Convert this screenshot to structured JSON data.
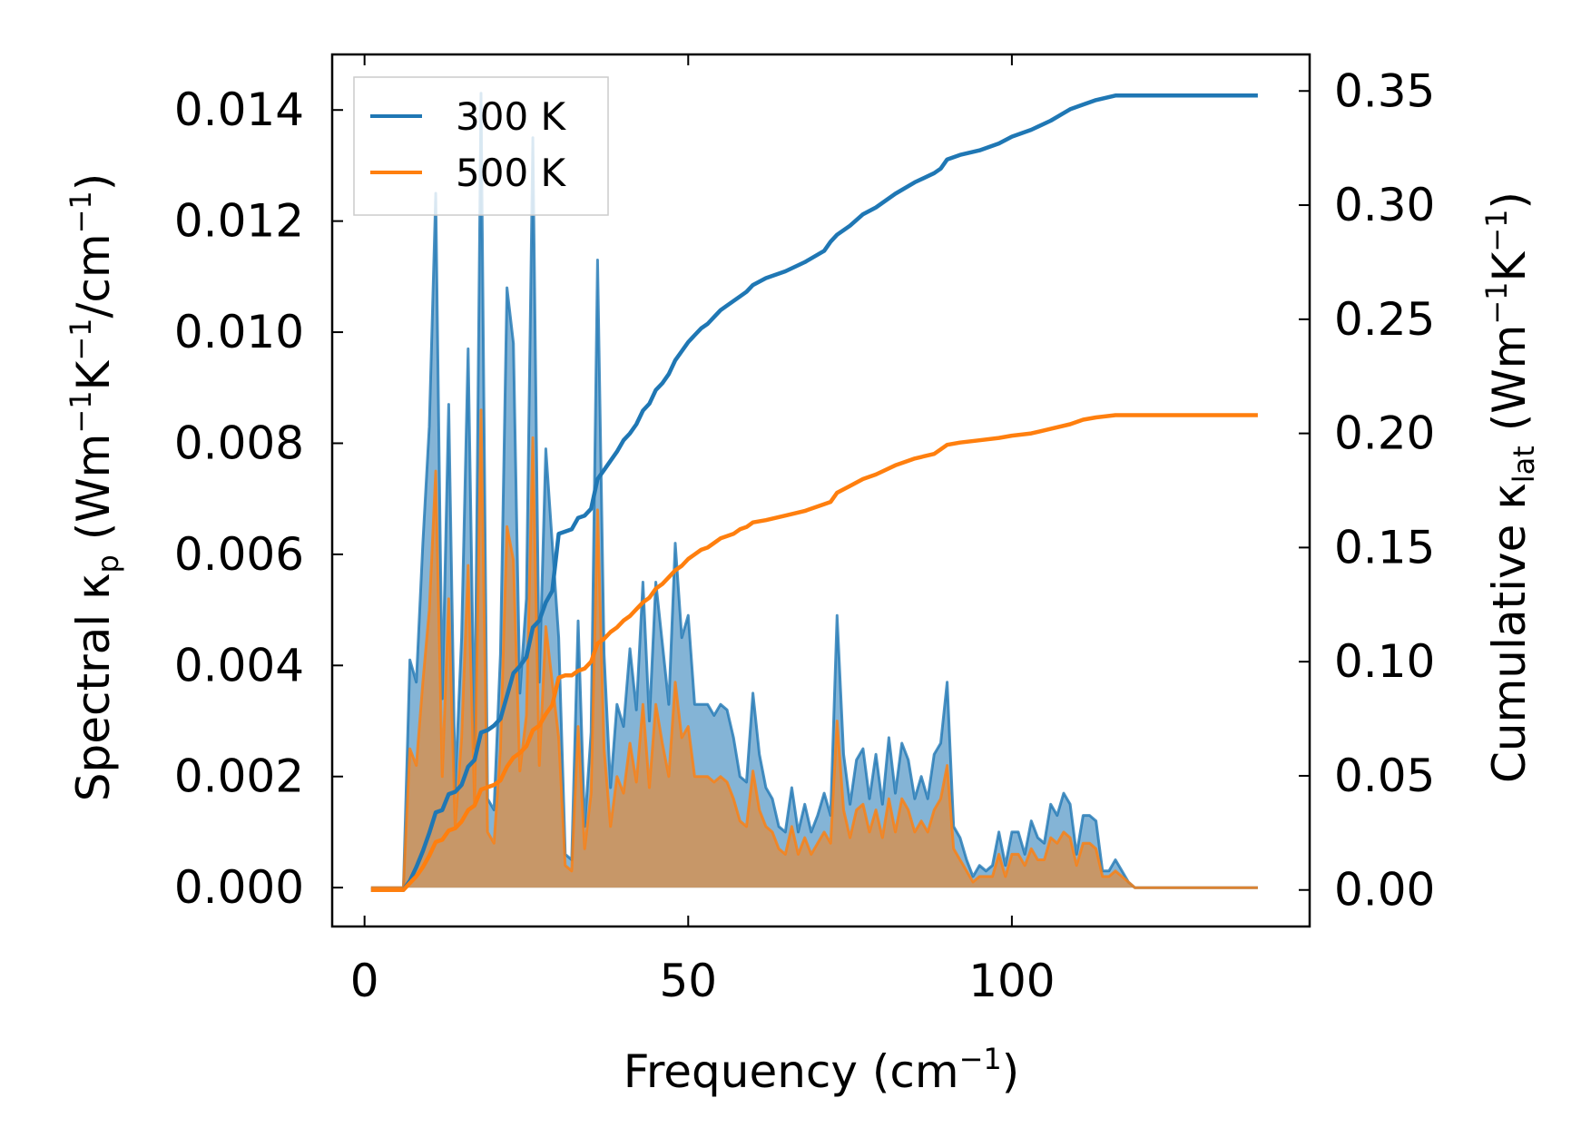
{
  "chart_data": {
    "type": "area",
    "xlabel": {
      "text": "Frequency (cm",
      "sup": "−1",
      "tail": ")"
    },
    "ylabel_left": {
      "base": "Spectral κ",
      "sub": "p",
      "rest": " (Wm",
      "sup1": "−1",
      "mid": "K",
      "sup2": "−1",
      "mid2": "/cm",
      "sup3": "−1",
      "tail": ")"
    },
    "ylabel_right": {
      "base": "Cumulative κ",
      "sub": "lat",
      "rest": " (Wm",
      "sup1": "−1",
      "mid": "K",
      "sup2": "−1",
      "tail": ")"
    },
    "xlim": [
      -5,
      146
    ],
    "ylim_left": [
      -0.0007,
      0.015
    ],
    "ylim_right": [
      -0.016,
      0.366
    ],
    "xticks": [
      0,
      50,
      100
    ],
    "xtick_labels": [
      "0",
      "50",
      "100"
    ],
    "yticks_left": [
      0,
      0.002,
      0.004,
      0.006,
      0.008,
      0.01,
      0.012,
      0.014
    ],
    "ytick_labels_left": [
      "0.000",
      "0.002",
      "0.004",
      "0.006",
      "0.008",
      "0.010",
      "0.012",
      "0.014"
    ],
    "yticks_right": [
      0,
      0.05,
      0.1,
      0.15,
      0.2,
      0.25,
      0.3,
      0.35
    ],
    "ytick_labels_right": [
      "0.00",
      "0.05",
      "0.10",
      "0.15",
      "0.20",
      "0.25",
      "0.30",
      "0.35"
    ],
    "grid": false,
    "legend": {
      "position": "top-left"
    },
    "colors": {
      "s300": "#1f77b4",
      "s500": "#ff7f0e"
    },
    "spectral_x": [
      1,
      6,
      7,
      8,
      9,
      10,
      11,
      12,
      13,
      14,
      15,
      16,
      17,
      18,
      19,
      20,
      21,
      22,
      23,
      24,
      25,
      26,
      27,
      28,
      29,
      30,
      31,
      32,
      33,
      34,
      35,
      36,
      37,
      38,
      39,
      40,
      41,
      42,
      43,
      44,
      45,
      46,
      47,
      48,
      49,
      50,
      51,
      52,
      53,
      54,
      55,
      56,
      57,
      58,
      59,
      60,
      61,
      62,
      63,
      64,
      65,
      66,
      67,
      68,
      69,
      70,
      71,
      72,
      73,
      74,
      75,
      76,
      77,
      78,
      79,
      80,
      81,
      82,
      83,
      84,
      85,
      86,
      87,
      88,
      89,
      90,
      91,
      92,
      93,
      94,
      95,
      96,
      97,
      98,
      99,
      100,
      101,
      102,
      103,
      104,
      105,
      106,
      107,
      108,
      109,
      110,
      111,
      112,
      113,
      114,
      115,
      116,
      117,
      118,
      119,
      120,
      121,
      138
    ],
    "series": [
      {
        "name": "300 K",
        "spectral": [
          0,
          0,
          0.0041,
          0.0037,
          0.0062,
          0.0083,
          0.0125,
          0.0034,
          0.0087,
          0.0018,
          0.0045,
          0.0097,
          0.0025,
          0.0143,
          0.0016,
          0.0014,
          0.0042,
          0.0108,
          0.0098,
          0.0035,
          0.0052,
          0.0135,
          0.0037,
          0.0079,
          0.0062,
          0.0045,
          0.0006,
          0.0005,
          0.0048,
          0.0011,
          0.0028,
          0.0113,
          0.0042,
          0.0018,
          0.0033,
          0.0029,
          0.0043,
          0.0032,
          0.0055,
          0.003,
          0.0055,
          0.0044,
          0.0033,
          0.0062,
          0.0045,
          0.0049,
          0.0033,
          0.0033,
          0.0033,
          0.0031,
          0.0033,
          0.0032,
          0.0027,
          0.002,
          0.0019,
          0.0035,
          0.0024,
          0.0018,
          0.0016,
          0.0011,
          0.001,
          0.0018,
          0.001,
          0.0015,
          0.001,
          0.0013,
          0.0017,
          0.0013,
          0.0049,
          0.0024,
          0.0015,
          0.0023,
          0.0025,
          0.0016,
          0.0024,
          0.0015,
          0.0027,
          0.0017,
          0.0026,
          0.0023,
          0.0016,
          0.002,
          0.0016,
          0.0024,
          0.0026,
          0.0037,
          0.0011,
          0.0009,
          0.0005,
          0.0002,
          0.0004,
          0.0003,
          0.0004,
          0.001,
          0.0004,
          0.001,
          0.001,
          0.0006,
          0.0012,
          0.0009,
          0.0008,
          0.0015,
          0.0013,
          0.0017,
          0.0015,
          0.0006,
          0.0013,
          0.0013,
          0.0012,
          0.0003,
          0.0003,
          0.0005,
          0.0003,
          0.0001,
          0,
          0,
          0,
          0
        ],
        "cumulative_x": [
          1,
          6,
          7,
          8,
          9,
          10,
          11,
          12,
          13,
          14,
          15,
          16,
          17,
          18,
          19,
          20,
          21,
          22,
          23,
          24,
          25,
          26,
          27,
          28,
          29,
          30,
          31,
          32,
          33,
          34,
          35,
          36,
          37,
          38,
          39,
          40,
          41,
          42,
          43,
          44,
          45,
          46,
          47,
          48,
          49,
          50,
          51,
          52,
          53,
          54,
          55,
          56,
          57,
          58,
          59,
          60,
          62,
          65,
          68,
          71,
          72,
          73,
          75,
          77,
          79,
          82,
          85,
          88,
          89,
          90,
          92,
          95,
          98,
          100,
          103,
          106,
          109,
          111,
          113,
          116,
          118,
          120,
          138
        ],
        "cumulative": [
          0,
          0,
          0.004,
          0.01,
          0.017,
          0.025,
          0.034,
          0.035,
          0.042,
          0.043,
          0.046,
          0.054,
          0.057,
          0.069,
          0.07,
          0.072,
          0.075,
          0.085,
          0.095,
          0.098,
          0.102,
          0.115,
          0.118,
          0.126,
          0.131,
          0.156,
          0.157,
          0.158,
          0.163,
          0.164,
          0.167,
          0.18,
          0.184,
          0.188,
          0.192,
          0.197,
          0.2,
          0.204,
          0.21,
          0.213,
          0.219,
          0.222,
          0.226,
          0.232,
          0.236,
          0.24,
          0.243,
          0.246,
          0.248,
          0.251,
          0.254,
          0.256,
          0.258,
          0.26,
          0.262,
          0.265,
          0.268,
          0.271,
          0.275,
          0.28,
          0.284,
          0.287,
          0.291,
          0.296,
          0.299,
          0.305,
          0.31,
          0.314,
          0.316,
          0.32,
          0.322,
          0.324,
          0.327,
          0.33,
          0.333,
          0.337,
          0.342,
          0.344,
          0.346,
          0.348,
          0.348,
          0.348,
          0.348
        ]
      },
      {
        "name": "500 K",
        "spectral": [
          0,
          0,
          0.0025,
          0.0022,
          0.0037,
          0.005,
          0.0075,
          0.002,
          0.0052,
          0.0011,
          0.0027,
          0.0058,
          0.0015,
          0.0086,
          0.001,
          0.0008,
          0.0025,
          0.0065,
          0.0059,
          0.0021,
          0.0031,
          0.0081,
          0.0022,
          0.0047,
          0.0037,
          0.0027,
          0.0004,
          0.0003,
          0.0029,
          0.0007,
          0.0017,
          0.0068,
          0.0025,
          0.0011,
          0.002,
          0.0017,
          0.0026,
          0.0019,
          0.0033,
          0.0018,
          0.0033,
          0.0026,
          0.002,
          0.0037,
          0.0027,
          0.0029,
          0.002,
          0.002,
          0.002,
          0.0019,
          0.002,
          0.0019,
          0.0016,
          0.0012,
          0.0011,
          0.0021,
          0.0014,
          0.0011,
          0.001,
          0.0007,
          0.0006,
          0.0011,
          0.0006,
          0.0009,
          0.0006,
          0.0008,
          0.001,
          0.0008,
          0.003,
          0.0014,
          0.0009,
          0.0014,
          0.0015,
          0.001,
          0.0014,
          0.0009,
          0.0016,
          0.001,
          0.0016,
          0.0014,
          0.001,
          0.0012,
          0.001,
          0.0014,
          0.0016,
          0.0022,
          0.0007,
          0.0005,
          0.0003,
          0.0001,
          0.0002,
          0.0002,
          0.0002,
          0.0006,
          0.0002,
          0.0006,
          0.0006,
          0.0004,
          0.0007,
          0.0005,
          0.0005,
          0.0009,
          0.0008,
          0.001,
          0.0009,
          0.0004,
          0.0008,
          0.0008,
          0.0007,
          0.0002,
          0.0002,
          0.0003,
          0.0002,
          0.0001,
          0,
          0,
          0,
          0
        ],
        "cumulative_x": [
          1,
          6,
          7,
          8,
          9,
          10,
          11,
          12,
          13,
          14,
          15,
          16,
          17,
          18,
          19,
          20,
          21,
          22,
          23,
          24,
          25,
          26,
          27,
          28,
          29,
          30,
          31,
          32,
          33,
          34,
          35,
          36,
          37,
          38,
          39,
          40,
          41,
          42,
          43,
          44,
          45,
          46,
          47,
          48,
          49,
          50,
          51,
          52,
          53,
          54,
          55,
          56,
          57,
          58,
          59,
          60,
          62,
          65,
          68,
          71,
          72,
          73,
          75,
          77,
          79,
          82,
          85,
          88,
          89,
          90,
          92,
          95,
          98,
          100,
          103,
          106,
          109,
          111,
          113,
          116,
          118,
          120,
          138
        ],
        "cumulative": [
          0,
          0,
          0.003,
          0.006,
          0.01,
          0.015,
          0.021,
          0.022,
          0.026,
          0.027,
          0.03,
          0.035,
          0.037,
          0.044,
          0.045,
          0.046,
          0.048,
          0.054,
          0.058,
          0.06,
          0.063,
          0.07,
          0.072,
          0.077,
          0.081,
          0.093,
          0.094,
          0.094,
          0.096,
          0.097,
          0.1,
          0.108,
          0.11,
          0.113,
          0.115,
          0.118,
          0.12,
          0.123,
          0.126,
          0.128,
          0.132,
          0.134,
          0.137,
          0.14,
          0.142,
          0.145,
          0.147,
          0.149,
          0.15,
          0.152,
          0.154,
          0.155,
          0.156,
          0.158,
          0.159,
          0.161,
          0.162,
          0.164,
          0.166,
          0.169,
          0.17,
          0.174,
          0.177,
          0.18,
          0.182,
          0.186,
          0.189,
          0.191,
          0.193,
          0.195,
          0.196,
          0.197,
          0.198,
          0.199,
          0.2,
          0.202,
          0.204,
          0.206,
          0.207,
          0.208,
          0.208,
          0.208,
          0.208
        ]
      }
    ]
  }
}
